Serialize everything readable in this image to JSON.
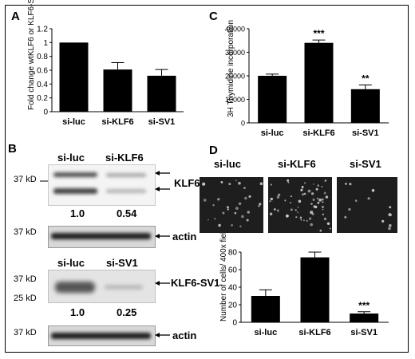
{
  "panels": {
    "A": {
      "label": "A",
      "ylabel": "Fold change wtKLF6 or KLF6-SV1"
    },
    "B": {
      "label": "B"
    },
    "C": {
      "label": "C",
      "ylabel": "3H Thymidine incorporation"
    },
    "D": {
      "label": "D",
      "ylabel": "Number of cells/ 400x field"
    }
  },
  "blots": {
    "klf6_lanes": [
      "si-luc",
      "si-KLF6"
    ],
    "sv1_lanes": [
      "si-luc",
      "si-SV1"
    ],
    "klf6_label": "KLF6",
    "sv1_label": "KLF6-SV1",
    "actin_label": "actin",
    "klf6_quant": [
      "1.0",
      "0.54"
    ],
    "sv1_quant": [
      "1.0",
      "0.25"
    ],
    "mw_37": "37 kD",
    "mw_25": "25 kD"
  },
  "micro": {
    "labels": [
      "si-luc",
      "si-KLF6",
      "si-SV1"
    ]
  },
  "chart_data": [
    {
      "panel": "A",
      "type": "bar",
      "categories": [
        "si-luc",
        "si-KLF6",
        "si-SV1"
      ],
      "values": [
        1.0,
        0.61,
        0.52
      ],
      "errors": [
        0,
        0.1,
        0.09
      ],
      "ylabel": "Fold change wtKLF6 or KLF6-SV1",
      "ylim": [
        0,
        1.2
      ],
      "yticks": [
        "0",
        "0.2",
        "0.4",
        "0.6",
        "0.8",
        "1",
        "1.2"
      ],
      "annotations": [
        "",
        "",
        ""
      ]
    },
    {
      "panel": "C",
      "type": "bar",
      "categories": [
        "si-luc",
        "si-KLF6",
        "si-SV1"
      ],
      "values": [
        20000,
        34000,
        14300
      ],
      "errors": [
        700,
        1200,
        1800
      ],
      "ylabel": "3H Thymidine incorporation",
      "ylim": [
        0,
        40000
      ],
      "yticks": [
        "0",
        "10000",
        "20000",
        "30000",
        "40000"
      ],
      "annotations": [
        "",
        "***",
        "**"
      ]
    },
    {
      "panel": "D",
      "type": "bar",
      "categories": [
        "si-luc",
        "si-KLF6",
        "si-SV1"
      ],
      "values": [
        30,
        74,
        10
      ],
      "errors": [
        7,
        6,
        2
      ],
      "ylabel": "Number of cells/ 400x field",
      "ylim": [
        0,
        80
      ],
      "yticks": [
        "0",
        "20",
        "40",
        "60",
        "80"
      ],
      "annotations": [
        "",
        "***",
        "***"
      ]
    }
  ]
}
